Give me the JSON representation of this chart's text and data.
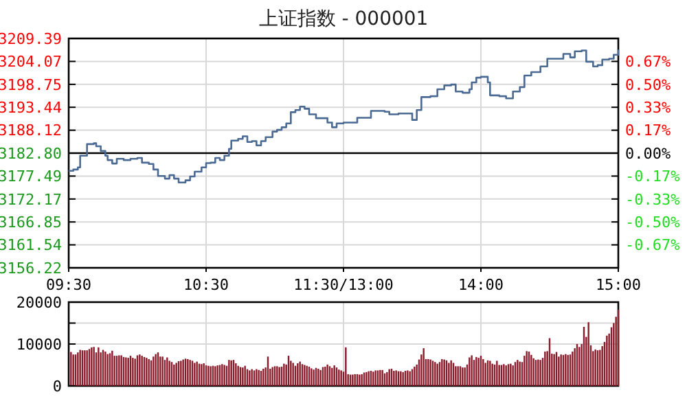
{
  "chart_data": [
    {
      "type": "step",
      "title": "上证指数 - 000001",
      "categories": [
        "09:30",
        null,
        null,
        null,
        null,
        null,
        null,
        null,
        null,
        null,
        null,
        null,
        null,
        null,
        null,
        null,
        null,
        null,
        null,
        null,
        null,
        null,
        null,
        null,
        null,
        null,
        null,
        null,
        null,
        null,
        null,
        null,
        null,
        null,
        null,
        null,
        null,
        null,
        null,
        null,
        null,
        null,
        null,
        null,
        null,
        null,
        null,
        null,
        null,
        null,
        null,
        null,
        null,
        null,
        null,
        null,
        null,
        null,
        null,
        null,
        "10:30",
        null,
        null,
        null,
        null,
        null,
        null,
        null,
        null,
        null,
        null,
        null,
        null,
        null,
        null,
        null,
        null,
        null,
        null,
        null,
        null,
        null,
        null,
        null,
        null,
        null,
        null,
        null,
        null,
        null,
        null,
        null,
        null,
        null,
        null,
        null,
        null,
        null,
        null,
        null,
        null,
        null,
        null,
        null,
        null,
        null,
        null,
        null,
        null,
        null,
        null,
        null,
        null,
        null,
        null,
        null,
        null,
        null,
        null,
        null,
        "11:30/13:00",
        null,
        null,
        null,
        null,
        null,
        null,
        null,
        null,
        null,
        null,
        null,
        null,
        null,
        null,
        null,
        null,
        null,
        null,
        null,
        null,
        null,
        null,
        null,
        null,
        null,
        null,
        null,
        null,
        null,
        null,
        null,
        null,
        null,
        null,
        null,
        null,
        null,
        null,
        null,
        null,
        null,
        null,
        null,
        null,
        null,
        null,
        null,
        null,
        null,
        null,
        null,
        null,
        null,
        null,
        null,
        null,
        null,
        null,
        null,
        "14:00",
        null,
        null,
        null,
        null,
        null,
        null,
        null,
        null,
        null,
        null,
        null,
        null,
        null,
        null,
        null,
        null,
        null,
        null,
        null,
        null,
        null,
        null,
        null,
        null,
        null,
        null,
        null,
        null,
        null,
        null,
        null,
        null,
        null,
        null,
        null,
        null,
        null,
        null,
        null,
        null,
        null,
        null,
        null,
        null,
        null,
        null,
        null,
        null,
        null,
        null,
        null,
        null,
        null,
        null,
        null,
        null,
        null,
        null,
        null,
        "15:00"
      ],
      "ylim": [
        3156.22,
        3209.39
      ],
      "yticks": [
        {
          "value": 3156.22,
          "label": "3156.22"
        },
        {
          "value": 3161.54,
          "label": "3161.54"
        },
        {
          "value": 3166.85,
          "label": "3166.85"
        },
        {
          "value": 3172.17,
          "label": "3172.17"
        },
        {
          "value": 3177.49,
          "label": "3177.49"
        },
        {
          "value": 3182.8,
          "label": "3182.80"
        },
        {
          "value": 3188.12,
          "label": "3188.12"
        },
        {
          "value": 3193.44,
          "label": "3193.44"
        },
        {
          "value": 3198.75,
          "label": "3198.75"
        },
        {
          "value": 3204.07,
          "label": "3204.07"
        },
        {
          "value": 3209.39,
          "label": "3209.39"
        }
      ],
      "y2lim": [
        -0.835,
        0.835
      ],
      "y2ticks": [
        {
          "value": -0.668,
          "label": "-0.67%"
        },
        {
          "value": -0.501,
          "label": "-0.50%"
        },
        {
          "value": -0.334,
          "label": "-0.33%"
        },
        {
          "value": -0.167,
          "label": "-0.17%"
        },
        {
          "value": 0,
          "label": "0.00%"
        },
        {
          "value": 0.167,
          "label": "0.17%"
        },
        {
          "value": 0.334,
          "label": "0.33%"
        },
        {
          "value": 0.501,
          "label": "0.50%"
        },
        {
          "value": 0.668,
          "label": "0.67%"
        }
      ],
      "ref_lines": [
        {
          "axis": "y",
          "value": 3182.8,
          "color": "#000000"
        }
      ],
      "grid": true,
      "series": [
        {
          "color": "#4a6a94",
          "values": [
            3178.7,
            3178.7,
            3179.0,
            3179.0,
            3179.5,
            3182.2,
            3182.2,
            3182.2,
            3184.9,
            3184.9,
            3184.9,
            3185.1,
            3184.4,
            3184.4,
            3183.3,
            3183.3,
            3182.2,
            3181.2,
            3181.2,
            3180.4,
            3180.4,
            3181.5,
            3181.5,
            3181.5,
            3181.2,
            3181.2,
            3181.2,
            3181.5,
            3181.5,
            3181.5,
            3181.7,
            3181.7,
            3180.6,
            3180.6,
            3180.6,
            3180.3,
            3180.3,
            3179.0,
            3179.0,
            3177.5,
            3177.5,
            3177.5,
            3176.9,
            3176.9,
            3177.7,
            3177.7,
            3176.9,
            3176.9,
            3176.0,
            3176.0,
            3176.0,
            3176.5,
            3176.5,
            3177.4,
            3177.4,
            3178.5,
            3178.5,
            3178.5,
            3179.5,
            3179.5,
            3180.5,
            3180.5,
            3180.6,
            3180.6,
            3181.7,
            3181.7,
            3181.2,
            3181.2,
            3182.2,
            3182.2,
            3183.8,
            3185.7,
            3185.7,
            3185.7,
            3186.1,
            3186.1,
            3186.7,
            3186.7,
            3185.4,
            3185.4,
            3185.6,
            3185.6,
            3184.6,
            3184.6,
            3185.6,
            3185.6,
            3186.5,
            3186.5,
            3186.5,
            3187.8,
            3187.8,
            3188.2,
            3188.2,
            3188.8,
            3188.8,
            3189.7,
            3189.7,
            3192.3,
            3192.3,
            3192.8,
            3192.8,
            3193.6,
            3193.6,
            3193.1,
            3193.1,
            3191.8,
            3191.8,
            3191.8,
            3190.9,
            3190.9,
            3190.9,
            3190.9,
            3190.9,
            3189.9,
            3189.9,
            3188.8,
            3188.8,
            3189.7,
            3189.7,
            3189.7,
            3189.9,
            3189.9,
            3189.9,
            3189.9,
            3189.9,
            3189.9,
            3191.0,
            3191.0,
            3191.0,
            3191.0,
            3191.0,
            3191.0,
            3192.6,
            3192.6,
            3192.6,
            3192.6,
            3192.6,
            3192.6,
            3192.4,
            3192.4,
            3191.8,
            3191.8,
            3191.8,
            3191.8,
            3192.0,
            3192.0,
            3192.0,
            3192.0,
            3192.0,
            3192.0,
            3190.5,
            3190.5,
            3192.8,
            3192.8,
            3195.8,
            3195.8,
            3195.8,
            3195.8,
            3196.0,
            3196.0,
            3196.0,
            3197.6,
            3197.6,
            3197.6,
            3198.5,
            3198.5,
            3198.5,
            3198.7,
            3198.7,
            3197.1,
            3197.1,
            3197.1,
            3196.8,
            3196.8,
            3196.8,
            3197.6,
            3199.2,
            3199.2,
            3200.3,
            3200.3,
            3200.5,
            3200.5,
            3200.5,
            3199.2,
            3196.2,
            3196.2,
            3196.2,
            3196.2,
            3196.0,
            3196.0,
            3196.0,
            3195.5,
            3195.5,
            3195.5,
            3197.1,
            3197.1,
            3197.1,
            3198.1,
            3198.1,
            3200.8,
            3200.8,
            3200.8,
            3201.6,
            3201.6,
            3201.6,
            3201.6,
            3202.9,
            3202.9,
            3202.9,
            3204.7,
            3204.7,
            3204.7,
            3204.7,
            3204.7,
            3204.7,
            3204.7,
            3205.8,
            3205.8,
            3205.8,
            3205.0,
            3205.0,
            3206.4,
            3206.4,
            3206.4,
            3206.6,
            3206.6,
            3204.0,
            3204.0,
            3204.0,
            3202.9,
            3202.9,
            3203.2,
            3203.2,
            3204.5,
            3204.5,
            3204.5,
            3204.7,
            3204.7,
            3205.6,
            3205.6,
            3206.8
          ]
        }
      ]
    },
    {
      "type": "bar",
      "categories": [
        null,
        null,
        null,
        null,
        null,
        null,
        null,
        null,
        null,
        null,
        null,
        null,
        null,
        null,
        null,
        null,
        null,
        null,
        null,
        null,
        null,
        null,
        null,
        null,
        null,
        null,
        null,
        null,
        null,
        null,
        null,
        null,
        null,
        null,
        null,
        null,
        null,
        null,
        null,
        null,
        null,
        null,
        null,
        null,
        null,
        null,
        null,
        null,
        null,
        null,
        null,
        null,
        null,
        null,
        null,
        null,
        null,
        null,
        null,
        null,
        null,
        null,
        null,
        null,
        null,
        null,
        null,
        null,
        null,
        null,
        null,
        null,
        null,
        null,
        null,
        null,
        null,
        null,
        null,
        null,
        null,
        null,
        null,
        null,
        null,
        null,
        null,
        null,
        null,
        null,
        null,
        null,
        null,
        null,
        null,
        null,
        null,
        null,
        null,
        null,
        null,
        null,
        null,
        null,
        null,
        null,
        null,
        null,
        null,
        null,
        null,
        null,
        null,
        null,
        null,
        null,
        null,
        null,
        null,
        null,
        null,
        null,
        null,
        null,
        null,
        null,
        null,
        null,
        null,
        null,
        null,
        null,
        null,
        null,
        null,
        null,
        null,
        null,
        null,
        null,
        null,
        null,
        null,
        null,
        null,
        null,
        null,
        null,
        null,
        null,
        null,
        null,
        null,
        null,
        null,
        null,
        null,
        null,
        null,
        null,
        null,
        null,
        null,
        null,
        null,
        null,
        null,
        null,
        null,
        null,
        null,
        null,
        null,
        null,
        null,
        null,
        null,
        null,
        null,
        null,
        null,
        null,
        null,
        null,
        null,
        null,
        null,
        null,
        null,
        null,
        null,
        null,
        null,
        null,
        null,
        null,
        null,
        null,
        null,
        null,
        null,
        null,
        null,
        null,
        null,
        null,
        null,
        null,
        null,
        null,
        null,
        null,
        null,
        null,
        null,
        null,
        null,
        null,
        null,
        null,
        null,
        null,
        null,
        null,
        null,
        null,
        null,
        null,
        null,
        null,
        null,
        null,
        null,
        null,
        null,
        null,
        null,
        null,
        null,
        null,
        null
      ],
      "ylim": [
        0,
        20000
      ],
      "yticks": [
        0,
        10000,
        {
          "value": 15000,
          "label": null
        },
        20000
      ],
      "grid": true,
      "tick_labels": "y",
      "series": [
        {
          "color": "#8b1a2a",
          "values": [
            null,
            8100,
            7500,
            7500,
            8000,
            8600,
            8500,
            8500,
            8500,
            8800,
            9200,
            9300,
            8000,
            9200,
            8000,
            8600,
            8200,
            7600,
            7800,
            8400,
            7200,
            7200,
            7300,
            7300,
            6900,
            6800,
            6700,
            7200,
            6700,
            6500,
            7300,
            7500,
            7200,
            6900,
            6700,
            6400,
            6100,
            7000,
            7600,
            8000,
            7000,
            7000,
            6200,
            6800,
            6000,
            5700,
            5100,
            5500,
            5900,
            6000,
            6300,
            6500,
            6400,
            6200,
            6000,
            5500,
            5800,
            5300,
            5200,
            5400,
            4900,
            4800,
            4700,
            4800,
            4700,
            4900,
            5000,
            5200,
            5000,
            4800,
            6200,
            6100,
            6200,
            5400,
            4800,
            4500,
            4400,
            4800,
            4000,
            3700,
            4000,
            3700,
            4000,
            3800,
            3600,
            4100,
            4400,
            7000,
            4100,
            4500,
            4700,
            4700,
            4500,
            4600,
            5300,
            5100,
            7200,
            6000,
            5500,
            4800,
            5400,
            5800,
            5200,
            5000,
            4800,
            4600,
            4200,
            3900,
            4300,
            4100,
            3800,
            4500,
            4600,
            5100,
            4700,
            4300,
            4900,
            4400,
            3900,
            3700,
            3400,
            9200,
            2800,
            2700,
            2700,
            2800,
            2800,
            2700,
            2800,
            3200,
            3300,
            3500,
            3600,
            3400,
            3700,
            3700,
            3800,
            3800,
            3000,
            3300,
            4000,
            4100,
            3600,
            3700,
            3500,
            3500,
            3300,
            3600,
            3700,
            3500,
            4000,
            4600,
            5100,
            6300,
            7500,
            9000,
            6400,
            6400,
            6300,
            6000,
            5700,
            5300,
            5700,
            6400,
            6300,
            6100,
            5500,
            6100,
            5500,
            4700,
            4700,
            4700,
            4400,
            4400,
            5100,
            6800,
            7300,
            6200,
            6900,
            6700,
            7200,
            6400,
            5500,
            6100,
            6000,
            5300,
            5100,
            6000,
            5000,
            5000,
            5200,
            4900,
            5200,
            5300,
            4900,
            5700,
            6200,
            5800,
            5700,
            7200,
            8300,
            8200,
            7400,
            6600,
            6200,
            6300,
            6200,
            6700,
            8200,
            8300,
            11400,
            7700,
            7600,
            8100,
            7000,
            7500,
            7400,
            7600,
            7400,
            7500,
            8200,
            9000,
            10000,
            9300,
            10000,
            14100,
            11700,
            15200,
            9700,
            8300,
            8700,
            8500,
            8600,
            9500,
            10500,
            12000,
            12500,
            14000,
            15000,
            16500,
            18200
          ]
        }
      ]
    }
  ]
}
